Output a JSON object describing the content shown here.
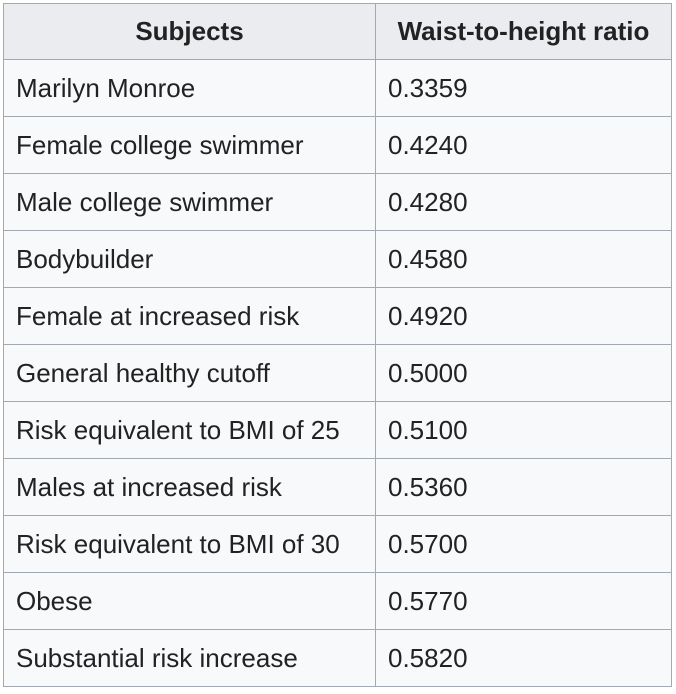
{
  "table": {
    "headers": [
      "Subjects",
      "Waist-to-height ratio"
    ],
    "rows": [
      {
        "subject": "Marilyn Monroe",
        "ratio": "0.3359"
      },
      {
        "subject": "Female college swimmer",
        "ratio": "0.4240"
      },
      {
        "subject": "Male college swimmer",
        "ratio": "0.4280"
      },
      {
        "subject": "Bodybuilder",
        "ratio": "0.4580"
      },
      {
        "subject": "Female at increased risk",
        "ratio": "0.4920"
      },
      {
        "subject": "General healthy cutoff",
        "ratio": "0.5000"
      },
      {
        "subject": "Risk equivalent to BMI of 25",
        "ratio": "0.5100"
      },
      {
        "subject": "Males at increased risk",
        "ratio": "0.5360"
      },
      {
        "subject": "Risk equivalent to BMI of 30",
        "ratio": "0.5700"
      },
      {
        "subject": "Obese",
        "ratio": "0.5770"
      },
      {
        "subject": "Substantial risk increase",
        "ratio": "0.5820"
      }
    ]
  }
}
